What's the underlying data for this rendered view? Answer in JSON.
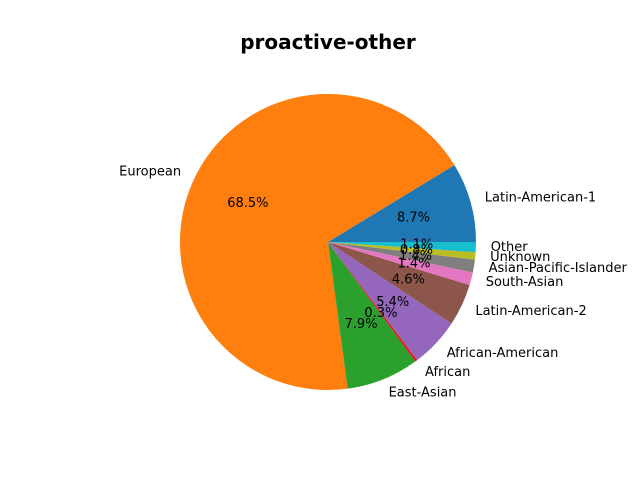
{
  "chart_data": {
    "type": "pie",
    "title": "proactive-other",
    "series": [
      {
        "label": "Latin-American-1",
        "value": 8.7,
        "pct_label": "8.7%",
        "color": "#1f77b4"
      },
      {
        "label": "European",
        "value": 68.5,
        "pct_label": "68.5%",
        "color": "#ff7f0e"
      },
      {
        "label": "East-Asian",
        "value": 7.9,
        "pct_label": "7.9%",
        "color": "#2ca02c"
      },
      {
        "label": "African",
        "value": 0.3,
        "pct_label": "0.3%",
        "color": "#d62728"
      },
      {
        "label": "African-American",
        "value": 5.4,
        "pct_label": "5.4%",
        "color": "#9467bd"
      },
      {
        "label": "Latin-American-2",
        "value": 4.6,
        "pct_label": "4.6%",
        "color": "#8c564b"
      },
      {
        "label": "South-Asian",
        "value": 1.4,
        "pct_label": "1.4%",
        "color": "#e377c2"
      },
      {
        "label": "Asian-Pacific-Islander",
        "value": 1.4,
        "pct_label": "1.4%",
        "color": "#7f7f7f"
      },
      {
        "label": "Unknown",
        "value": 0.8,
        "pct_label": "0.8%",
        "color": "#bcbd22"
      },
      {
        "label": "Other",
        "value": 1.1,
        "pct_label": "1.1%",
        "color": "#17becf"
      }
    ],
    "start_angle_deg": 0,
    "direction": "counterclockwise"
  }
}
